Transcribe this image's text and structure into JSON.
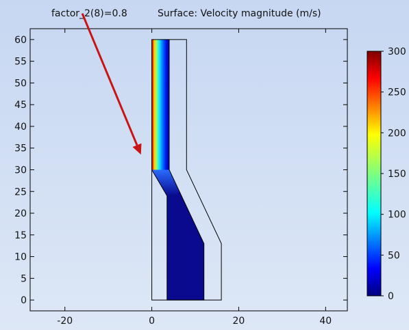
{
  "plot": {
    "title_param": "factor_2(8)=0.8",
    "title_quantity": "Surface: Velocity magnitude (m/s)",
    "x_axis": {
      "range": [
        -28,
        45
      ],
      "ticks": [
        -20,
        0,
        20,
        40
      ],
      "tick_labels": [
        "-20",
        "0",
        "20",
        "40"
      ]
    },
    "y_axis": {
      "range": [
        -2.5,
        62.5
      ],
      "ticks": [
        0,
        5,
        10,
        15,
        20,
        25,
        30,
        35,
        40,
        45,
        50,
        55,
        60
      ],
      "tick_labels": [
        "0",
        "5",
        "10",
        "15",
        "20",
        "25",
        "30",
        "35",
        "40",
        "45",
        "50",
        "55",
        "60"
      ]
    },
    "background_color": "#c7d7f2",
    "colormap": "jet"
  },
  "colorbar": {
    "range": [
      0,
      300
    ],
    "ticks": [
      0,
      50,
      100,
      150,
      200,
      250,
      300
    ],
    "tick_labels": [
      "0",
      "50",
      "100",
      "150",
      "200",
      "250",
      "300"
    ]
  },
  "geometry": {
    "outer_outline": [
      [
        0,
        60
      ],
      [
        8,
        60
      ],
      [
        8,
        30
      ],
      [
        16,
        13
      ],
      [
        16,
        0
      ],
      [
        0,
        0
      ]
    ],
    "fluid_upper": [
      [
        0,
        60
      ],
      [
        4,
        60
      ],
      [
        4,
        30
      ],
      [
        0,
        30
      ]
    ],
    "fluid_lower": [
      [
        0,
        30
      ],
      [
        4,
        30
      ],
      [
        12,
        13
      ],
      [
        12,
        0
      ],
      [
        3.5,
        0
      ],
      [
        3.5,
        24
      ]
    ],
    "lower_fluid_color": "#0a0a8e"
  },
  "annotation": {
    "arrow_color": "#c81414",
    "arrow_start": [
      -16,
      66
    ],
    "arrow_end": [
      -2.5,
      33.5
    ]
  }
}
